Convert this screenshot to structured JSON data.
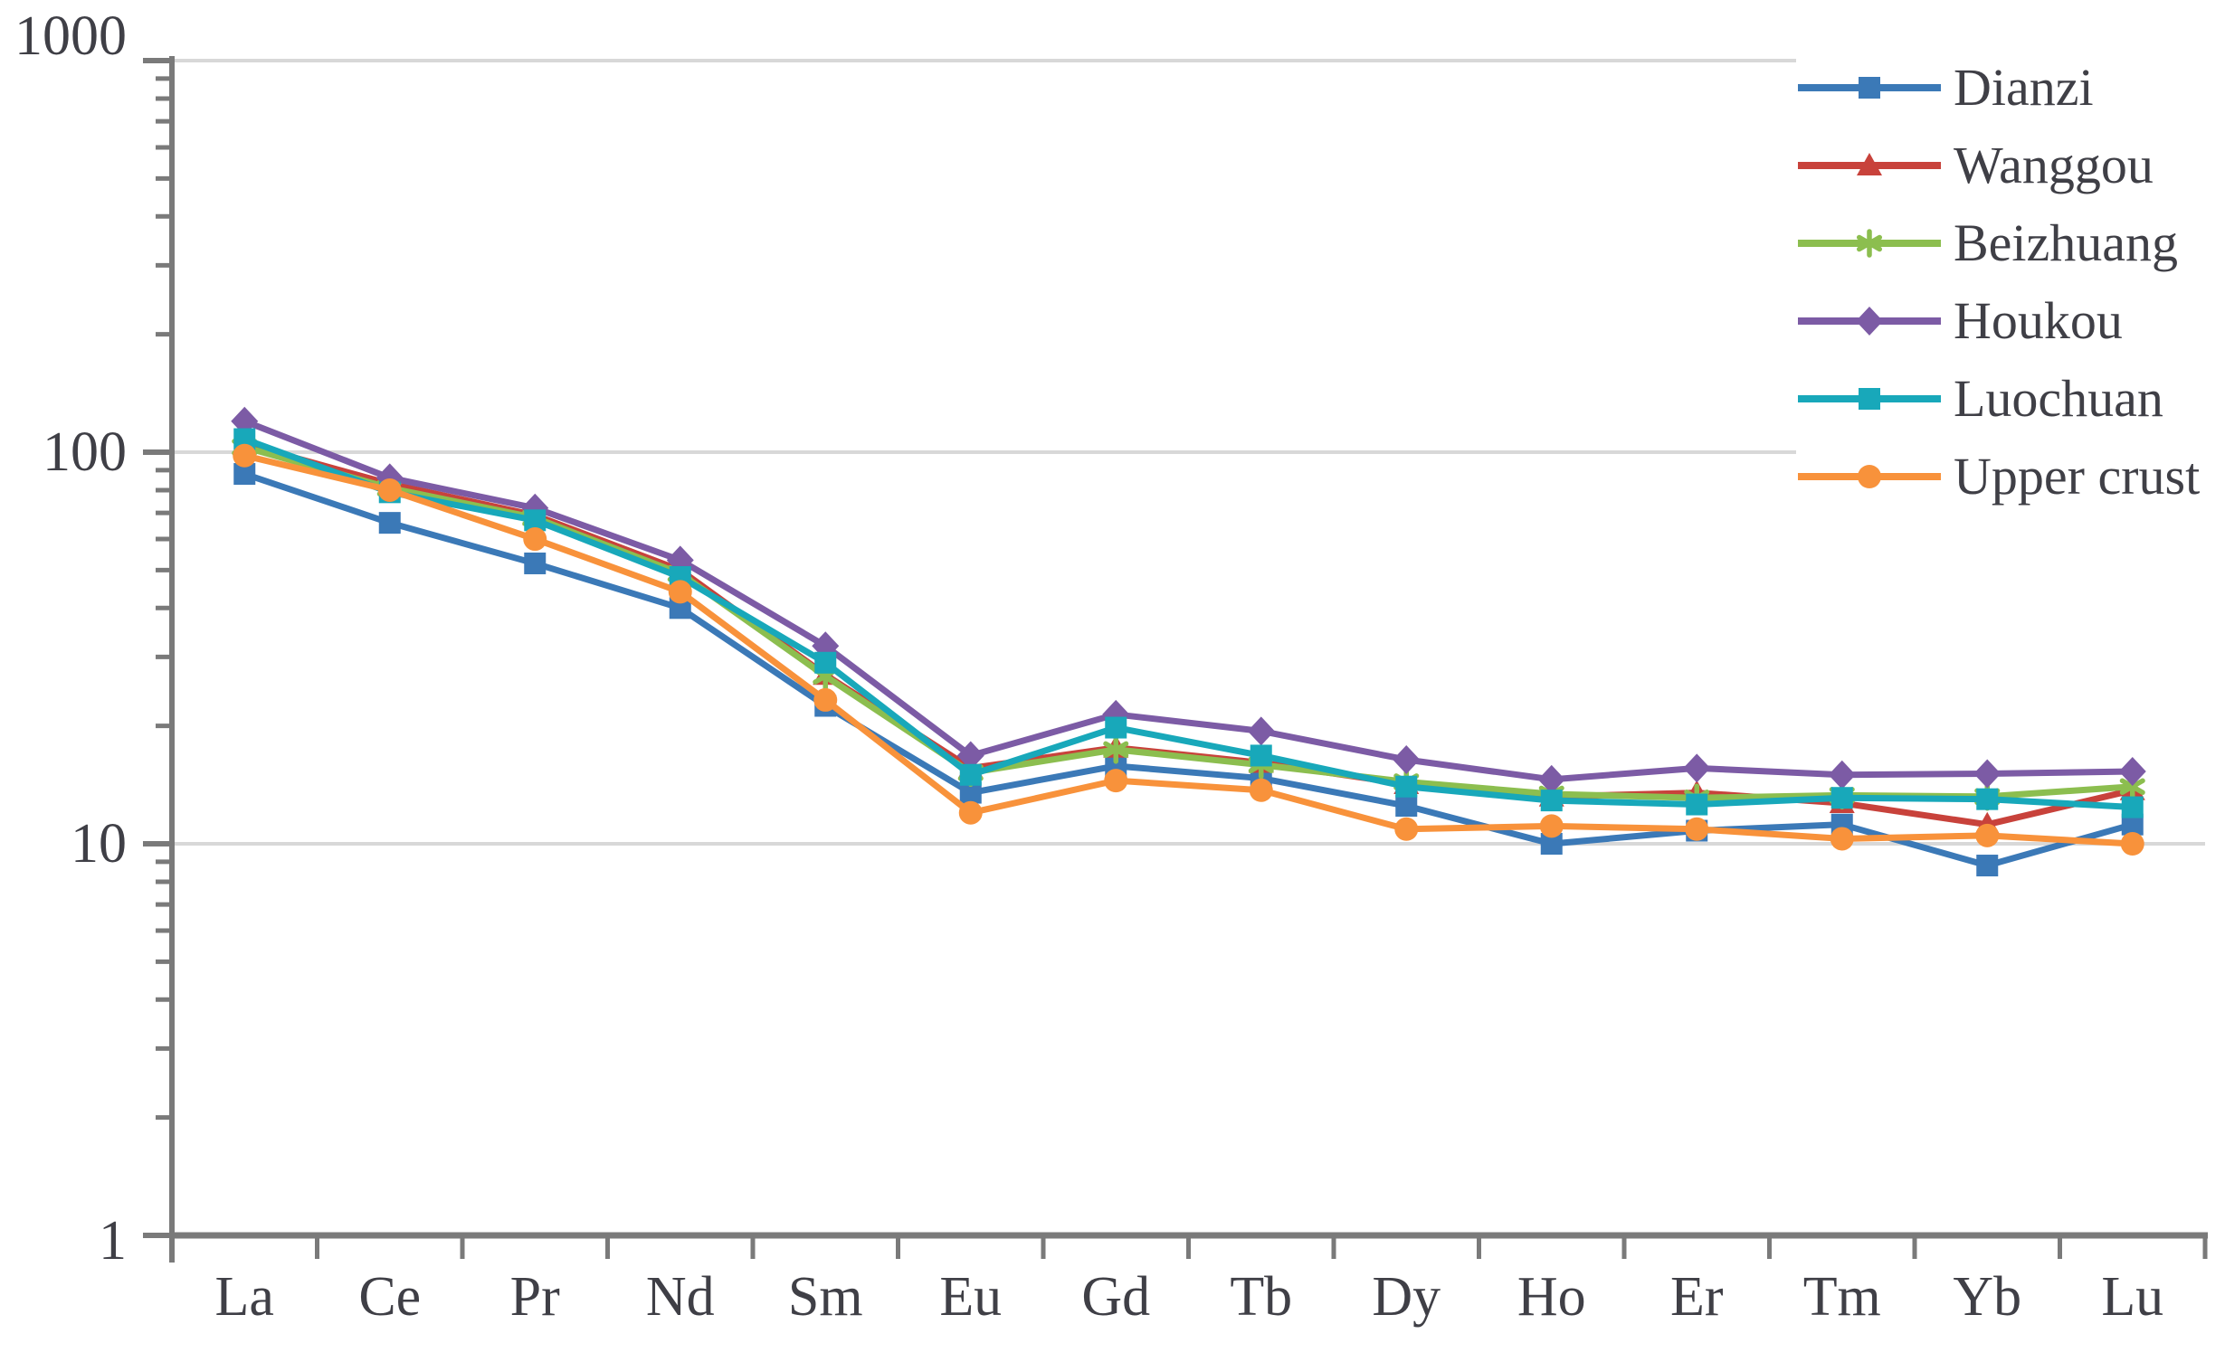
{
  "chart_data": {
    "type": "line",
    "title": "",
    "xlabel": "",
    "ylabel": "",
    "x_categories": [
      "La",
      "Ce",
      "Pr",
      "Nd",
      "Sm",
      "Eu",
      "Gd",
      "Tb",
      "Dy",
      "Ho",
      "Er",
      "Tm",
      "Yb",
      "Lu"
    ],
    "y_axis": {
      "scale": "log",
      "range": [
        1,
        1000
      ],
      "major_tick_labels": [
        "1",
        "10",
        "100",
        "1000"
      ],
      "major_ticks": [
        1,
        10,
        100,
        1000
      ]
    },
    "grid": "horizontal-major",
    "legend_position": "top-right",
    "series": [
      {
        "name": "Dianzi",
        "color": "#3b79b7",
        "marker": "square",
        "values": [
          88,
          66,
          52,
          40,
          22.5,
          13.5,
          15.8,
          14.7,
          12.5,
          10,
          10.8,
          11.2,
          8.8,
          11.2
        ]
      },
      {
        "name": "Wanggou",
        "color": "#c8423b",
        "marker": "triangle",
        "values": [
          105,
          83,
          69,
          50,
          27,
          15.6,
          17.6,
          16.1,
          14.2,
          13.2,
          13.5,
          12.7,
          11.2,
          13.7
        ]
      },
      {
        "name": "Beizhuang",
        "color": "#8cbe4f",
        "marker": "asterisk",
        "values": [
          103,
          81,
          68,
          49,
          26.8,
          15.2,
          17.4,
          15.9,
          14.4,
          13.4,
          13.1,
          13.3,
          13.2,
          14
        ]
      },
      {
        "name": "Houkou",
        "color": "#7c5ba5",
        "marker": "diamond",
        "values": [
          120,
          86,
          72,
          53,
          32,
          16.8,
          21.4,
          19.4,
          16.4,
          14.6,
          15.6,
          15,
          15.1,
          15.3
        ]
      },
      {
        "name": "Luochuan",
        "color": "#18a8ba",
        "marker": "square",
        "values": [
          108,
          79,
          67,
          48,
          29,
          15,
          19.8,
          16.8,
          14,
          12.9,
          12.6,
          13.1,
          13,
          12.4
        ]
      },
      {
        "name": "Upper crust",
        "color": "#f8923b",
        "marker": "circle",
        "values": [
          98,
          80,
          60,
          44,
          23.3,
          12,
          14.5,
          13.7,
          10.9,
          11.1,
          10.9,
          10.3,
          10.5,
          10
        ]
      }
    ]
  },
  "colors": {
    "gridline": "#d8d8d8",
    "axis": "#7a7a7a",
    "label_text": "#3f3f46",
    "background": "#ffffff"
  }
}
